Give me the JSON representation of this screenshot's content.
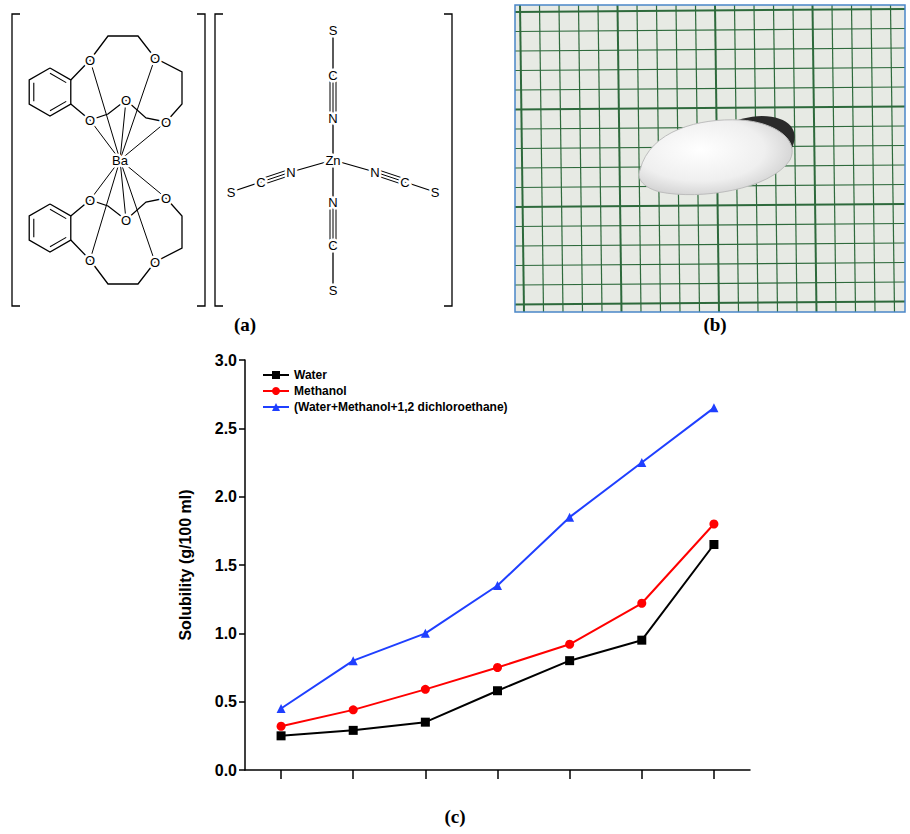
{
  "panel_labels": [
    "(a)",
    "(b)",
    "(c)"
  ],
  "structure": {
    "cation": {
      "metal": "Ba",
      "oxygens": [
        "O",
        "O",
        "O",
        "O",
        "O",
        "O",
        "O",
        "O",
        "O",
        "O"
      ]
    },
    "anion": {
      "metal": "Zn",
      "ligands": [
        [
          "N",
          "C",
          "S"
        ],
        [
          "N",
          "C",
          "S"
        ],
        [
          "N",
          "C",
          "S"
        ],
        [
          "N",
          "C",
          "S"
        ]
      ]
    }
  },
  "chart_data": {
    "type": "line",
    "y_label": "Solubility (g/100 ml)",
    "categories": [
      null,
      null,
      null,
      null,
      null,
      null,
      null
    ],
    "series": [
      {
        "name": "Water",
        "color": "#000000",
        "marker": "square",
        "line_style": "solid",
        "values": [
          0.25,
          0.29,
          0.35,
          0.58,
          0.8,
          0.95,
          1.65
        ]
      },
      {
        "name": "Methanol",
        "color": "#ff0000",
        "marker": "circle",
        "line_style": "solid",
        "values": [
          0.32,
          0.44,
          0.59,
          0.75,
          0.92,
          1.22,
          1.8
        ]
      },
      {
        "name": "(Water+Methanol+1,2 dichloroethane)",
        "color": "#1f3fff",
        "marker": "triangle",
        "line_style": "solid",
        "values": [
          0.45,
          0.8,
          1.0,
          1.35,
          1.85,
          2.25,
          2.65
        ]
      }
    ],
    "ylim": [
      0,
      3
    ],
    "yticks": [
      {
        "value": 0,
        "label": "0.0"
      },
      0.5,
      {
        "value": 1,
        "label": "1.0"
      },
      1.5,
      {
        "value": 2,
        "label": "2.0"
      },
      2.5,
      {
        "value": 3,
        "label": "3.0"
      }
    ],
    "grid": false,
    "legend": "upper left",
    "tick_labels": "y"
  }
}
